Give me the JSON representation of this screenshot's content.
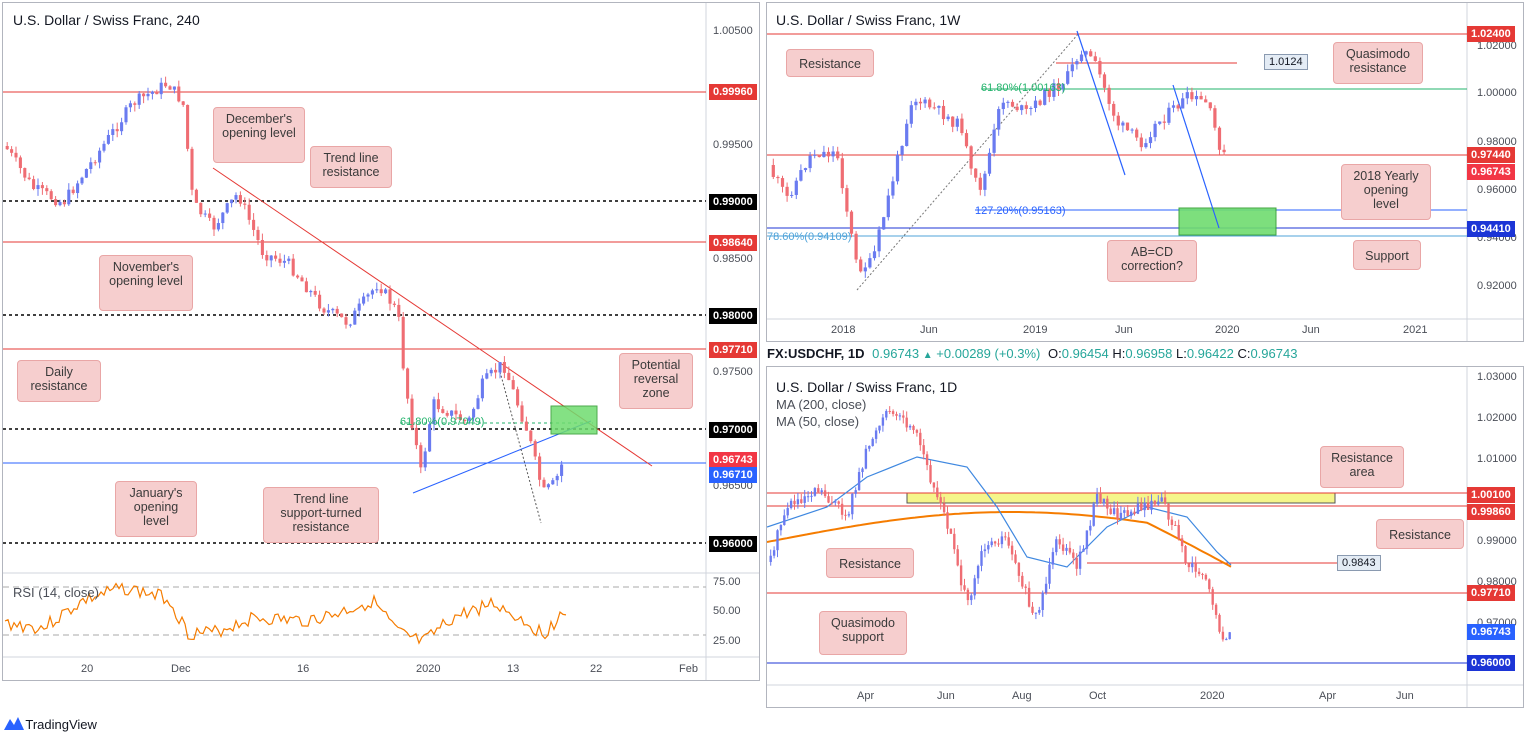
{
  "panels": {
    "h4": {
      "title": "U.S. Dollar / Swiss Franc, 240",
      "rsi_label": "RSI (14, close)",
      "y_ticks": [
        "1.00500",
        "0.99500",
        "0.98500",
        "0.97500",
        "0.96500"
      ],
      "rsi_ticks": [
        "75.00",
        "50.00",
        "25.00"
      ],
      "x_ticks": [
        "20",
        "Dec",
        "16",
        "2020",
        "13",
        "22",
        "Feb"
      ],
      "price_labels": [
        {
          "text": "0.99960",
          "color": "#e53935"
        },
        {
          "text": "0.99000",
          "color": "#000000"
        },
        {
          "text": "0.98640",
          "color": "#e53935"
        },
        {
          "text": "0.98000",
          "color": "#000000"
        },
        {
          "text": "0.97710",
          "color": "#e53935"
        },
        {
          "text": "0.97000",
          "color": "#000000"
        },
        {
          "text": "0.96743",
          "color": "#f23645"
        },
        {
          "text": "0.96710",
          "color": "#2962ff"
        },
        {
          "text": "0.96000",
          "color": "#000000"
        }
      ],
      "notes": {
        "december": "December's opening level",
        "trend_res": "Trend line resistance",
        "november": "November's opening level",
        "daily_res": "Daily resistance",
        "prz": "Potential reversal zone",
        "january": "January's opening level",
        "trend_sup": "Trend line support-turned resistance"
      },
      "fib_text": "61.80%(0.97049)"
    },
    "w1": {
      "title": "U.S. Dollar / Swiss Franc, 1W",
      "y_ticks": [
        "1.02000",
        "1.00000",
        "0.98000",
        "0.96000",
        "0.94000",
        "0.92000"
      ],
      "x_ticks": [
        "2018",
        "Jun",
        "2019",
        "Jun",
        "2020",
        "Jun",
        "2021"
      ],
      "price_labels": [
        {
          "text": "1.02400",
          "color": "#e53935"
        },
        {
          "text": "0.97440",
          "color": "#e53935"
        },
        {
          "text": "0.96743",
          "color": "#f23645"
        },
        {
          "text": "0.94410",
          "color": "#1c35d6"
        }
      ],
      "notes": {
        "resistance": "Resistance",
        "quasimodo": "Quasimodo resistance",
        "yearly": "2018 Yearly opening level",
        "abcd": "AB=CD correction?",
        "support": "Support"
      },
      "box_label": "1.0124",
      "fib_61": "61.80%(1.00163)",
      "fib_127": "127.20%(0.95163)",
      "fib_786": "78.60%(0.94109)"
    },
    "d1": {
      "infobar": {
        "symbol": "FX:USDCHF, 1D",
        "price": "0.96743",
        "change": "+0.00289 (+0.3%)",
        "o_label": "O:",
        "o": "0.96454",
        "h_label": "H:",
        "h": "0.96958",
        "l_label": "L:",
        "l": "0.96422",
        "c_label": "C:",
        "c": "0.96743"
      },
      "title": "U.S. Dollar / Swiss Franc, 1D",
      "ma200": "MA (200, close)",
      "ma50": "MA (50, close)",
      "y_ticks": [
        "1.03000",
        "1.02000",
        "1.01000",
        "0.99000",
        "0.98000",
        "0.97000"
      ],
      "x_ticks": [
        "Apr",
        "Jun",
        "Aug",
        "Oct",
        "2020",
        "Apr",
        "Jun"
      ],
      "price_labels": [
        {
          "text": "1.00100",
          "color": "#e53935"
        },
        {
          "text": "0.99860",
          "color": "#e53935"
        },
        {
          "text": "0.97710",
          "color": "#e53935"
        },
        {
          "text": "0.96743",
          "color": "#2962ff"
        },
        {
          "text": "0.96000",
          "color": "#1c35d6"
        }
      ],
      "notes": {
        "res_area": "Resistance area",
        "resistance_r": "Resistance",
        "resistance_l": "Resistance",
        "quasimodo": "Quasimodo support"
      },
      "box_label": "0.9843"
    }
  },
  "brand": "TradingView",
  "colors": {
    "up": "#6a7bf0",
    "down": "#ef6d73",
    "red_line": "#e53935",
    "blue_line": "#2962ff",
    "orange": "#f57c00",
    "ma_blue": "#3f88e0",
    "green_zone": "#6fdc6f",
    "yellow_zone": "#f5f58a"
  }
}
